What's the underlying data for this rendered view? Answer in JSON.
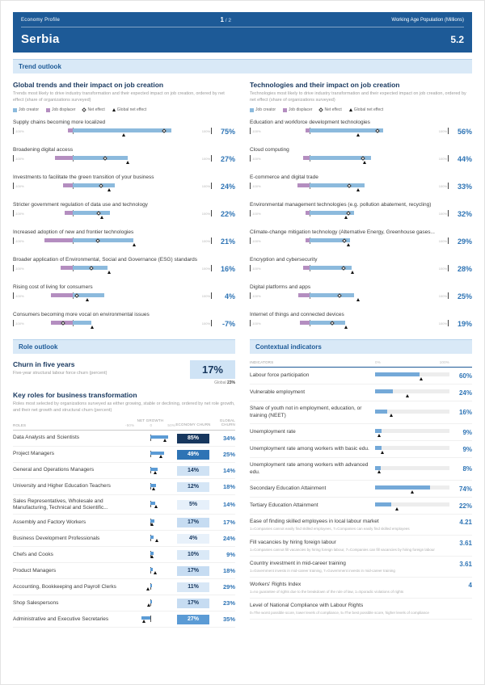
{
  "header": {
    "eyebrow": "Economy Profile",
    "title": "Serbia",
    "page_current": "1",
    "page_sep": "/",
    "page_total": "2",
    "wap_label": "Working Age Population (Millions)",
    "wap_value": "5.2"
  },
  "section_titles": {
    "trend": "Trend outlook",
    "role": "Role outlook",
    "contextual": "Contextual indicators"
  },
  "legend": {
    "job_creator": "Job creator",
    "job_displacer": "Job displacer",
    "net_effect": "Net effect",
    "global_net_effect": "Global net effect"
  },
  "colors": {
    "header_blue": "#1d5a97",
    "section_bg": "#d9e9f7",
    "accent_blue": "#2e74b5",
    "creator_blue": "#8cbadd",
    "displacer_purple": "#b48ec0",
    "indicator_blue": "#74a9d8"
  },
  "trends": {
    "title": "Global trends and their impact on job creation",
    "subtitle": "Trends most likely to drive industry transformation and their expected impact on job creation, ordered by net effect (share of organizations surveyed)",
    "axis_min": "-100%",
    "axis_max": "100%",
    "items": [
      {
        "label": "Supply chains becoming more localized",
        "value": "75%",
        "creator": 80,
        "displacer": 5,
        "net": 75,
        "global": 42
      },
      {
        "label": "Broadening digital access",
        "value": "27%",
        "creator": 45,
        "displacer": 18,
        "net": 27,
        "global": 45
      },
      {
        "label": "Investments to facilitate the green transition of your business",
        "value": "24%",
        "creator": 34,
        "displacer": 10,
        "net": 24,
        "global": 30
      },
      {
        "label": "Stricter government regulation of data use and technology",
        "value": "22%",
        "creator": 30,
        "displacer": 8,
        "net": 22,
        "global": 24
      },
      {
        "label": "Increased adoption of new and frontier technologies",
        "value": "21%",
        "creator": 49,
        "displacer": 28,
        "net": 21,
        "global": 50
      },
      {
        "label": "Broader application of Environmental, Social and Governance (ESG) standards",
        "value": "16%",
        "creator": 28,
        "displacer": 12,
        "net": 16,
        "global": 30
      },
      {
        "label": "Rising cost of living for consumers",
        "value": "4%",
        "creator": 26,
        "displacer": 22,
        "net": 4,
        "global": 12
      },
      {
        "label": "Consumers becoming more vocal on environmental issues",
        "value": "-7%",
        "creator": 15,
        "displacer": 22,
        "net": -7,
        "global": 16
      }
    ]
  },
  "technologies": {
    "title": "Technologies and their impact on job creation",
    "subtitle": "Technologies most likely to drive industry transformation and their expected impact on job creation, ordered by net effect (share of organizations surveyed)",
    "items": [
      {
        "label": "Education and workforce development technologies",
        "value": "56%",
        "creator": 60,
        "displacer": 4,
        "net": 56,
        "global": 40
      },
      {
        "label": "Cloud computing",
        "value": "44%",
        "creator": 50,
        "displacer": 6,
        "net": 44,
        "global": 45
      },
      {
        "label": "E-commerce and digital trade",
        "value": "33%",
        "creator": 45,
        "displacer": 12,
        "net": 33,
        "global": 40
      },
      {
        "label": "Environmental management technologies (e.g. pollution abatement, recycling)",
        "value": "32%",
        "creator": 36,
        "displacer": 4,
        "net": 32,
        "global": 30
      },
      {
        "label": "Climate-change mitigation technology (Alternative Energy, Greenhouse gases...",
        "value": "29%",
        "creator": 33,
        "displacer": 4,
        "net": 29,
        "global": 32
      },
      {
        "label": "Encryption and cybersecurity",
        "value": "28%",
        "creator": 34,
        "displacer": 6,
        "net": 28,
        "global": 35
      },
      {
        "label": "Digital platforms and apps",
        "value": "25%",
        "creator": 36,
        "displacer": 11,
        "net": 25,
        "global": 40
      },
      {
        "label": "Internet of things and connected devices",
        "value": "19%",
        "creator": 29,
        "displacer": 10,
        "net": 19,
        "global": 30
      }
    ]
  },
  "churn": {
    "title": "Churn in five years",
    "subtitle": "Five-year structural labour force churn (percent)",
    "value": "17%",
    "global_label": "Global",
    "global_value": "23%"
  },
  "roles": {
    "title": "Key roles for business transformation",
    "subtitle": "Roles most selected by organizations surveyed as either growing, stable or declining, ordered by net role growth, and their net growth and structural churn (percent)",
    "col_roles": "ROLES",
    "col_net_growth": "NET GROWTH",
    "scale_min": "-50%",
    "scale_zero": "0",
    "scale_max": "50%",
    "col_economy_churn": "ECONOMY CHURN",
    "col_global_churn": "GLOBAL CHURN",
    "items": [
      {
        "label": "Data Analysts and Scientists",
        "net_growth": 35,
        "global_growth": 30,
        "churn": "85%",
        "churn_bg": "#17375e",
        "churn_fg": "#ffffff",
        "global_churn": "34%"
      },
      {
        "label": "Project Managers",
        "net_growth": 28,
        "global_growth": 22,
        "churn": "49%",
        "churn_bg": "#2e74b5",
        "churn_fg": "#ffffff",
        "global_churn": "25%"
      },
      {
        "label": "General and Operations Managers",
        "net_growth": 14,
        "global_growth": 10,
        "churn": "14%",
        "churn_bg": "#cfe2f4",
        "churn_fg": "#17375e",
        "global_churn": "14%"
      },
      {
        "label": "University and Higher Education Teachers",
        "net_growth": 12,
        "global_growth": 8,
        "churn": "12%",
        "churn_bg": "#d5e6f6",
        "churn_fg": "#17375e",
        "global_churn": "18%"
      },
      {
        "label": "Sales Representatives, Wholesale and Manufacturing, Technical and Scientific...",
        "net_growth": 9,
        "global_growth": 12,
        "churn": "5%",
        "churn_bg": "#e6f0fa",
        "churn_fg": "#17375e",
        "global_churn": "14%"
      },
      {
        "label": "Assembly and Factory Workers",
        "net_growth": 8,
        "global_growth": 4,
        "churn": "17%",
        "churn_bg": "#c6dcf2",
        "churn_fg": "#17375e",
        "global_churn": "17%"
      },
      {
        "label": "Business Development Professionals",
        "net_growth": 7,
        "global_growth": 14,
        "churn": "4%",
        "churn_bg": "#e8f1fa",
        "churn_fg": "#17375e",
        "global_churn": "24%"
      },
      {
        "label": "Chefs and Cooks",
        "net_growth": 6,
        "global_growth": 4,
        "churn": "10%",
        "churn_bg": "#dae9f7",
        "churn_fg": "#17375e",
        "global_churn": "9%"
      },
      {
        "label": "Product Managers",
        "net_growth": 5,
        "global_growth": 10,
        "churn": "17%",
        "churn_bg": "#c6dcf2",
        "churn_fg": "#17375e",
        "global_churn": "18%"
      },
      {
        "label": "Accounting, Bookkeeping and Payroll Clerks",
        "net_growth": 4,
        "global_growth": -4,
        "churn": "11%",
        "churn_bg": "#d8e7f6",
        "churn_fg": "#17375e",
        "global_churn": "29%"
      },
      {
        "label": "Shop Salespersons",
        "net_growth": 3,
        "global_growth": -2,
        "churn": "17%",
        "churn_bg": "#c6dcf2",
        "churn_fg": "#17375e",
        "global_churn": "23%"
      },
      {
        "label": "Administrative and Executive Secretaries",
        "net_growth": -18,
        "global_growth": -12,
        "churn": "27%",
        "churn_bg": "#5b9bd5",
        "churn_fg": "#ffffff",
        "global_churn": "35%"
      }
    ]
  },
  "indicators": {
    "col_label": "INDICATORS",
    "scale_min": "0%",
    "scale_max": "100%",
    "bars": [
      {
        "label": "Labour force participation",
        "value": "60%",
        "value_num": 60,
        "global": 62
      },
      {
        "label": "Vulnerable employment",
        "value": "24%",
        "value_num": 24,
        "global": 44
      },
      {
        "label": "Share of youth not in employment, education, or training (NEET)",
        "value": "16%",
        "value_num": 16,
        "global": 22
      },
      {
        "label": "Unemployment rate",
        "value": "9%",
        "value_num": 9,
        "global": 6
      },
      {
        "label": "Unemployment rate among workers with basic edu.",
        "value": "9%",
        "value_num": 9,
        "global": 10
      },
      {
        "label": "Unemployment rate among workers with advanced edu.",
        "value": "8%",
        "value_num": 8,
        "global": 6
      },
      {
        "label": "Secondary Education Attainment",
        "value": "74%",
        "value_num": 74,
        "global": 50
      },
      {
        "label": "Tertiary Education Attainment",
        "value": "22%",
        "value_num": 22,
        "global": 30
      }
    ],
    "scales": [
      {
        "label": "Ease of finding skilled employees in local labour market",
        "note": "1=Companies cannot easily find skilled employees, 7=Companies can easily find skilled employees",
        "value": "4.21"
      },
      {
        "label": "Fill vacancies by hiring foreign labour",
        "note": "1=Companies cannot fill vacancies by hiring foreign labour, 7=Companies can fill vacancies by hiring foreign labour",
        "value": "3.61"
      },
      {
        "label": "Country investment in mid-career training",
        "note": "1=Government invests in mid-career training, 7=Government invests in mid-career training",
        "value": "3.61"
      },
      {
        "label": "Workers' Rights Index",
        "note": "1=no guarantee of rights due to the breakdown of the rule of law, 1=Sporadic violations of rights",
        "value": "4"
      },
      {
        "label": "Level of National Compliance with Labour Rights",
        "note": "0=The worst possible score, lower levels of compliance, 5=The best possible score, higher levels of compliance",
        "value": ""
      }
    ]
  }
}
